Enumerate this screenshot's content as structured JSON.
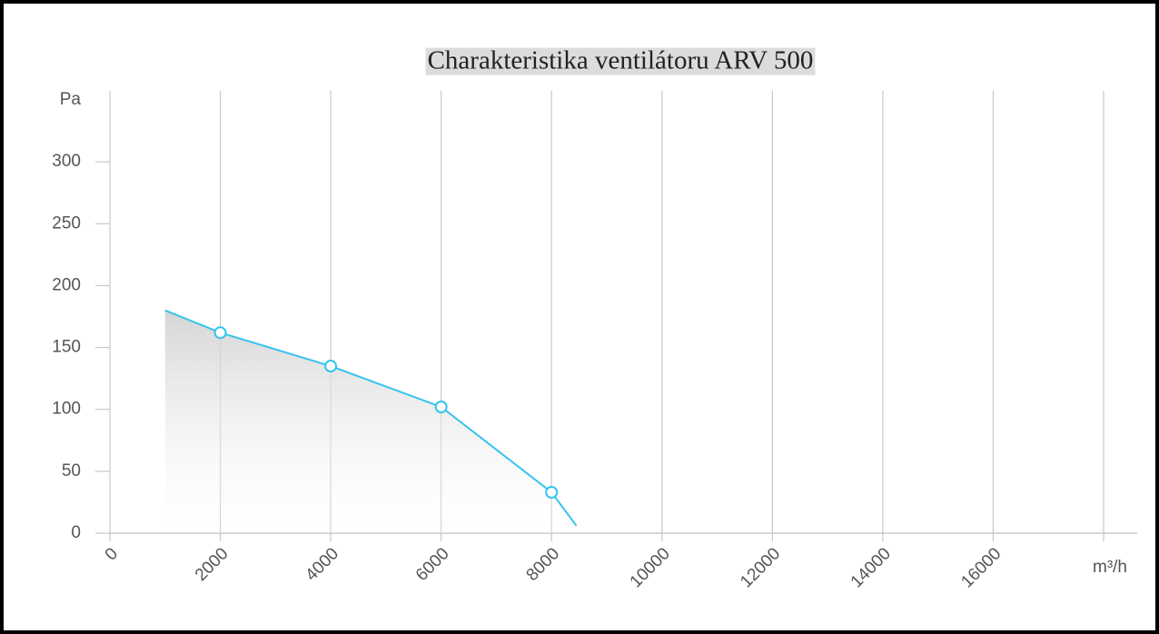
{
  "chart_data": {
    "type": "line",
    "title": "Charakteristika ventilátoru ARV 500",
    "x": [
      1000,
      2000,
      4000,
      6000,
      8000,
      8450
    ],
    "series": [
      {
        "color": "#35c3ee",
        "values": [
          180,
          162,
          135,
          102,
          33,
          6
        ],
        "markers": [
          false,
          true,
          true,
          true,
          true,
          false
        ]
      }
    ],
    "area_fill": true,
    "xlim": [
      0,
      18000
    ],
    "xticks": [
      0,
      2000,
      4000,
      6000,
      8000,
      10000,
      12000,
      14000,
      16000,
      {
        "value": 18000,
        "label": "m³/h"
      }
    ],
    "ylim": [
      0,
      350
    ],
    "yticks": [
      0,
      50,
      100,
      150,
      200,
      250,
      300,
      {
        "value": 350,
        "label": "Pa"
      }
    ],
    "grid": "x"
  }
}
